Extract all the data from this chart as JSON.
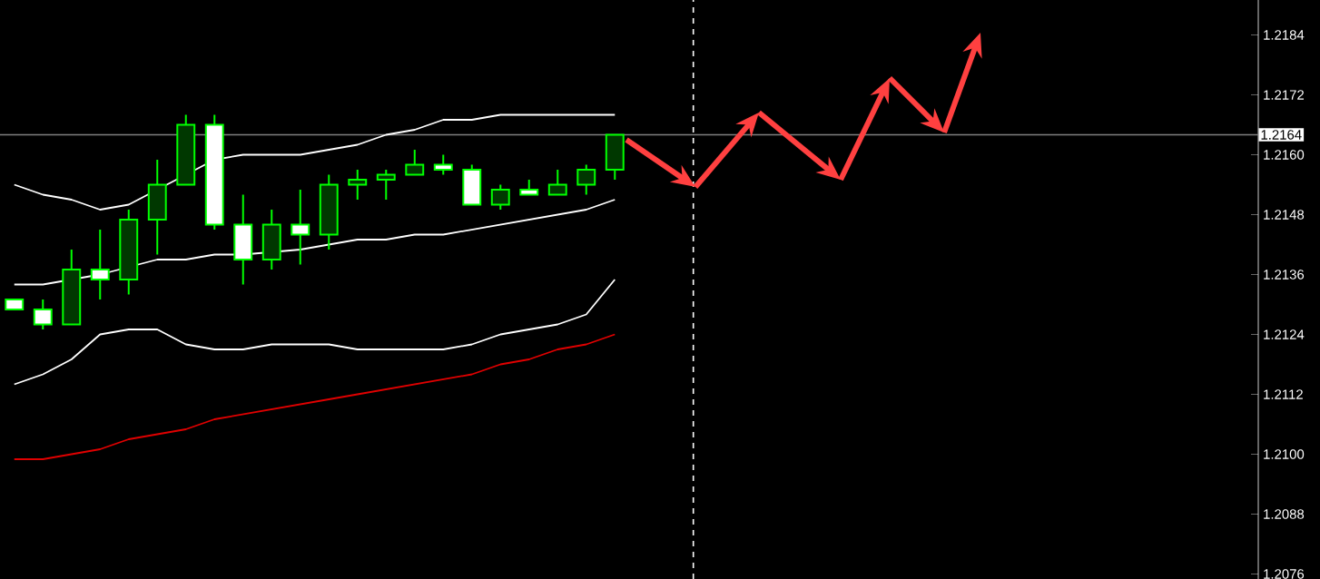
{
  "chart_data": {
    "type": "candlestick",
    "color": "#00ff00",
    "categories": [
      null,
      null,
      null,
      null,
      null,
      null,
      null,
      null,
      null,
      null,
      null,
      null,
      null,
      null,
      null,
      null,
      null,
      null,
      null,
      null,
      null,
      null,
      null,
      null,
      null,
      null,
      null,
      null,
      null,
      null,
      null,
      null,
      null,
      null,
      null,
      null,
      null,
      null,
      null,
      null,
      null,
      null,
      null,
      null
    ],
    "ohlc": [
      [
        1.2131,
        1.2131,
        1.2129,
        1.2129
      ],
      [
        1.2129,
        1.2131,
        1.2125,
        1.2126
      ],
      [
        1.2126,
        1.2141,
        1.2126,
        1.2137
      ],
      [
        1.2137,
        1.2145,
        1.2131,
        1.2135
      ],
      [
        1.2135,
        1.2149,
        1.2132,
        1.2147
      ],
      [
        1.2147,
        1.2159,
        1.214,
        1.2154
      ],
      [
        1.2154,
        1.2168,
        1.2154,
        1.2166
      ],
      [
        1.2166,
        1.2168,
        1.2145,
        1.2146
      ],
      [
        1.2146,
        1.2152,
        1.2134,
        1.2139
      ],
      [
        1.2139,
        1.2149,
        1.2137,
        1.2146
      ],
      [
        1.2146,
        1.2153,
        1.2138,
        1.2144
      ],
      [
        1.2144,
        1.2156,
        1.2141,
        1.2154
      ],
      [
        1.2154,
        1.2157,
        1.2151,
        1.2155
      ],
      [
        1.2155,
        1.2157,
        1.2151,
        1.2156
      ],
      [
        1.2156,
        1.2161,
        1.2156,
        1.2158
      ],
      [
        1.2158,
        1.216,
        1.2156,
        1.2157
      ],
      [
        1.2157,
        1.2158,
        1.215,
        1.215
      ],
      [
        1.215,
        1.2154,
        1.2149,
        1.2153
      ],
      [
        1.2153,
        1.2155,
        1.2152,
        1.2152
      ],
      [
        1.2152,
        1.2157,
        1.2152,
        1.2154
      ],
      [
        1.2154,
        1.2158,
        1.2152,
        1.2157
      ],
      [
        1.2157,
        1.2164,
        1.2155,
        1.2164
      ],
      null,
      null,
      null,
      null,
      null,
      null,
      null,
      null,
      null,
      null,
      null,
      null,
      null,
      null,
      null,
      null,
      null,
      null,
      null,
      null,
      null,
      null
    ],
    "series": [
      {
        "type": "line",
        "color": "#ffffff",
        "values": [
          1.2154,
          1.2152,
          1.2151,
          1.2149,
          1.215,
          null,
          null,
          1.2159,
          1.216,
          1.216,
          1.216,
          1.2161,
          1.2162,
          1.2164,
          1.2165,
          1.2167,
          1.2167,
          1.2168,
          1.2168,
          1.2168,
          1.2168,
          1.2168,
          null,
          null,
          null,
          null,
          null,
          null,
          null,
          null,
          null,
          null,
          null,
          null,
          null,
          null,
          null,
          null,
          null,
          null,
          null,
          null,
          null,
          null
        ]
      },
      {
        "type": "line",
        "color": "#ffffff",
        "values": [
          1.2134,
          1.2134,
          null,
          1.2136,
          null,
          1.2139,
          1.2139,
          1.214,
          1.214,
          null,
          1.2141,
          1.2142,
          1.2143,
          1.2143,
          1.2144,
          1.2144,
          1.2145,
          1.2146,
          1.2147,
          1.2148,
          1.2149,
          1.2151,
          null,
          null,
          null,
          null,
          null,
          null,
          null,
          null,
          null,
          null,
          null,
          null,
          null,
          null,
          null,
          null,
          null,
          null,
          null,
          null,
          null,
          null
        ]
      },
      {
        "type": "line",
        "color": "#ffffff",
        "values": [
          1.2114,
          1.2116,
          1.2119,
          1.2124,
          1.2125,
          1.2125,
          1.2122,
          1.2121,
          1.2121,
          1.2122,
          1.2122,
          1.2122,
          1.2121,
          1.2121,
          1.2121,
          1.2121,
          1.2122,
          1.2124,
          1.2125,
          1.2126,
          1.2128,
          1.2135,
          null,
          null,
          null,
          null,
          null,
          null,
          null,
          null,
          null,
          null,
          null,
          null,
          null,
          null,
          null,
          null,
          null,
          null,
          null,
          null,
          null,
          null
        ]
      },
      {
        "type": "line",
        "color": "#e00000",
        "values": [
          1.2099,
          1.2099,
          1.21,
          1.2101,
          1.2103,
          1.2104,
          1.2105,
          1.2107,
          1.2108,
          1.2109,
          1.211,
          1.2111,
          1.2112,
          1.2113,
          1.2114,
          1.2115,
          1.2116,
          1.2118,
          1.2119,
          1.2121,
          1.2122,
          1.2124,
          null,
          null,
          null,
          null,
          null,
          null,
          null,
          null,
          null,
          null,
          null,
          null,
          null,
          null,
          null,
          null,
          null,
          null,
          null,
          null,
          null,
          null
        ]
      }
    ],
    "ylim": [
      1.2075,
      1.2191
    ],
    "yticks": [
      {
        "value": 1.2076,
        "label": "1.2076"
      },
      {
        "value": 1.2088,
        "label": "1.2088"
      },
      {
        "value": 1.21,
        "label": "1.2100"
      },
      {
        "value": 1.2112,
        "label": "1.2112"
      },
      {
        "value": 1.2124,
        "label": "1.2124"
      },
      {
        "value": 1.2136,
        "label": "1.2136"
      },
      {
        "value": 1.2148,
        "label": "1.2148"
      },
      {
        "value": 1.216,
        "label": "1.2160"
      },
      {
        "value": 1.2172,
        "label": "1.2172"
      },
      {
        "value": 1.2184,
        "label": "1.2184"
      }
    ],
    "tick_labels": "y",
    "ref_lines": [
      {
        "axis": "y",
        "value": 1.2164,
        "label": "1.2164",
        "color": "#808080",
        "line_style": "solid"
      }
    ]
  }
}
